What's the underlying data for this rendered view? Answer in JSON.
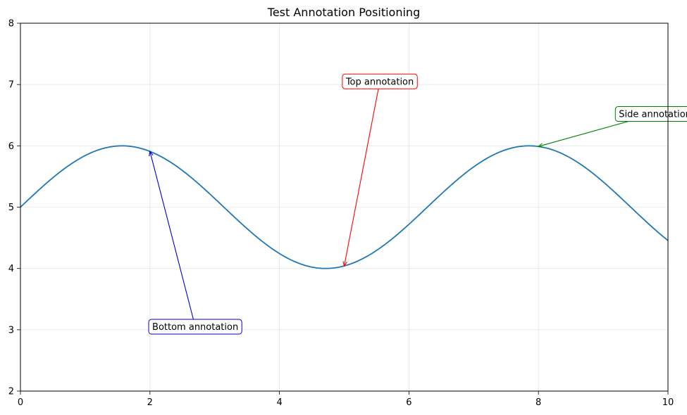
{
  "chart_data": {
    "type": "line",
    "title": "Test Annotation Positioning",
    "xlabel": "",
    "ylabel": "",
    "xlim": [
      0,
      10
    ],
    "ylim": [
      2,
      8
    ],
    "xticks": [
      0,
      2,
      4,
      6,
      8,
      10
    ],
    "yticks": [
      2,
      3,
      4,
      5,
      6,
      7,
      8
    ],
    "grid": true,
    "series": [
      {
        "function": "5 + sin(x)",
        "color": "#1f77b4",
        "x": [
          0,
          0.5,
          1,
          1.5708,
          2,
          2.5,
          3,
          3.5,
          4,
          4.7124,
          5,
          5.5,
          6,
          6.5,
          7,
          7.854,
          8,
          8.5,
          9,
          9.5,
          10
        ],
        "y": [
          5.0,
          5.479,
          5.841,
          6.0,
          5.909,
          5.598,
          5.141,
          4.649,
          4.243,
          4.0,
          4.041,
          4.295,
          4.721,
          5.215,
          5.657,
          6.0,
          5.989,
          5.798,
          5.412,
          4.925,
          4.456
        ]
      }
    ],
    "annotations": [
      {
        "text": "Top annotation",
        "point": [
          5.0,
          4.04
        ],
        "text_pos": [
          5.55,
          7.05
        ],
        "color": "#ff0000"
      },
      {
        "text": "Bottom annotation",
        "point": [
          2.0,
          5.91
        ],
        "text_pos": [
          2.7,
          3.05
        ],
        "color": "#0000cc"
      },
      {
        "text": "Side annotation",
        "point": [
          8.0,
          5.99
        ],
        "text_pos": [
          9.8,
          6.52
        ],
        "color": "#008000"
      }
    ]
  }
}
